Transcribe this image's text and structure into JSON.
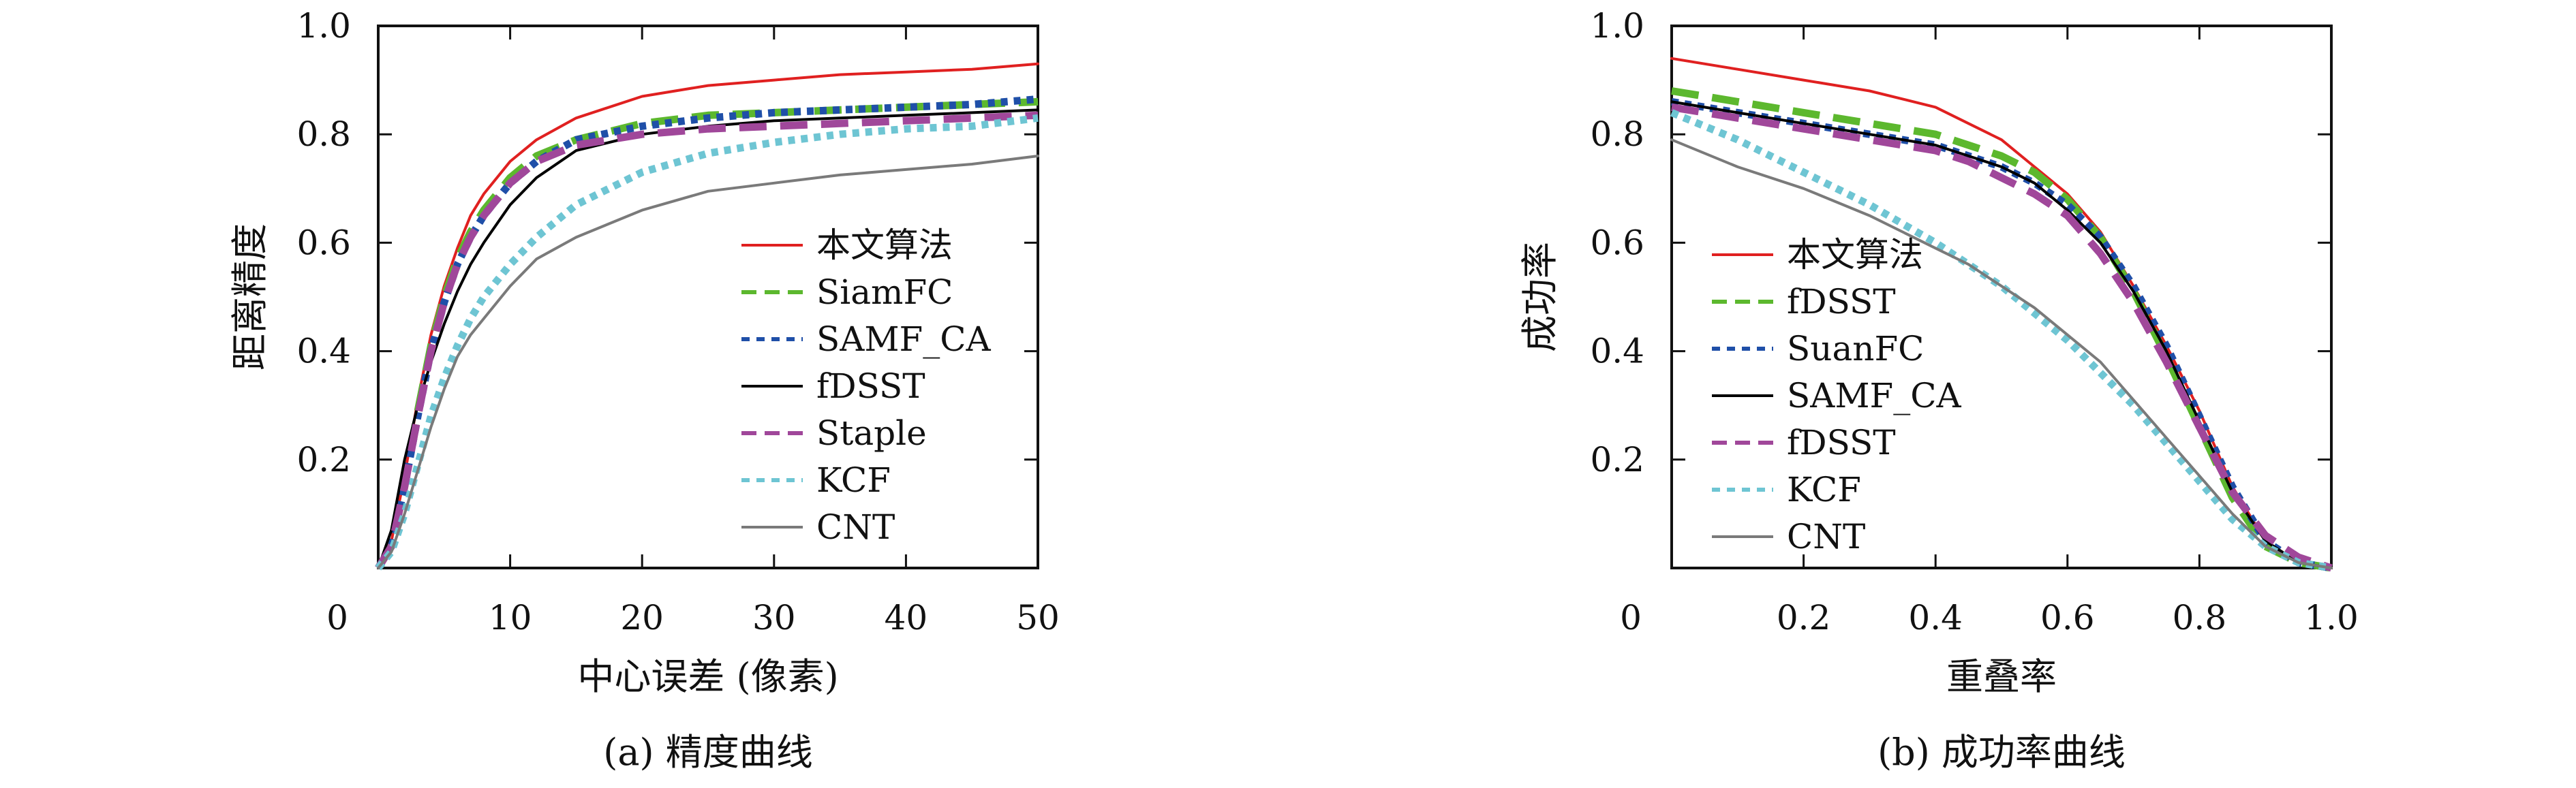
{
  "chart_data": [
    {
      "type": "line",
      "caption": "(a) 精度曲线",
      "xlabel": "中心误差 (像素)",
      "ylabel": "距离精度",
      "xlim": [
        0,
        50
      ],
      "ylim": [
        0,
        1.0
      ],
      "x_ticks": [
        "0",
        "10",
        "20",
        "30",
        "40",
        "50"
      ],
      "y_ticks": [
        "0.2",
        "0.4",
        "0.6",
        "0.8",
        "1.0"
      ],
      "grid": false,
      "legend_position": "bottom-right",
      "series": [
        {
          "name": "本文算法",
          "color": "#e02020",
          "style": "solid",
          "x": [
            0,
            1,
            2,
            3,
            4,
            5,
            6,
            7,
            8,
            10,
            12,
            15,
            20,
            25,
            30,
            35,
            40,
            45,
            50
          ],
          "y": [
            0,
            0.05,
            0.17,
            0.31,
            0.43,
            0.52,
            0.59,
            0.65,
            0.69,
            0.75,
            0.79,
            0.83,
            0.87,
            0.89,
            0.9,
            0.91,
            0.915,
            0.92,
            0.93
          ]
        },
        {
          "name": "SiamFC",
          "color": "#5cb82e",
          "style": "dashed-thick",
          "x": [
            0,
            1,
            2,
            3,
            4,
            5,
            6,
            7,
            8,
            10,
            12,
            15,
            20,
            25,
            30,
            35,
            40,
            45,
            50
          ],
          "y": [
            0,
            0.04,
            0.15,
            0.29,
            0.41,
            0.5,
            0.57,
            0.62,
            0.66,
            0.72,
            0.76,
            0.79,
            0.82,
            0.835,
            0.84,
            0.845,
            0.85,
            0.855,
            0.86
          ]
        },
        {
          "name": "SAMF_CA",
          "color": "#1f4fa8",
          "style": "dotted-thick",
          "x": [
            0,
            1,
            2,
            3,
            4,
            5,
            6,
            7,
            8,
            10,
            12,
            15,
            20,
            25,
            30,
            35,
            40,
            45,
            50
          ],
          "y": [
            0,
            0.04,
            0.15,
            0.28,
            0.4,
            0.49,
            0.56,
            0.61,
            0.65,
            0.71,
            0.75,
            0.79,
            0.815,
            0.83,
            0.84,
            0.845,
            0.85,
            0.855,
            0.865
          ]
        },
        {
          "name": "fDSST",
          "color": "#000000",
          "style": "solid",
          "x": [
            0,
            1,
            2,
            3,
            4,
            5,
            6,
            7,
            8,
            10,
            12,
            15,
            20,
            25,
            30,
            35,
            40,
            45,
            50
          ],
          "y": [
            0,
            0.07,
            0.2,
            0.3,
            0.38,
            0.45,
            0.51,
            0.56,
            0.6,
            0.67,
            0.72,
            0.77,
            0.8,
            0.815,
            0.825,
            0.83,
            0.835,
            0.84,
            0.845
          ]
        },
        {
          "name": "Staple",
          "color": "#a0479a",
          "style": "dashed-thick",
          "x": [
            0,
            1,
            2,
            3,
            4,
            5,
            6,
            7,
            8,
            10,
            12,
            15,
            20,
            25,
            30,
            35,
            40,
            45,
            50
          ],
          "y": [
            0,
            0.04,
            0.15,
            0.28,
            0.4,
            0.49,
            0.56,
            0.61,
            0.65,
            0.71,
            0.75,
            0.78,
            0.8,
            0.81,
            0.815,
            0.82,
            0.825,
            0.83,
            0.835
          ]
        },
        {
          "name": "KCF",
          "color": "#6ec5d3",
          "style": "dotted-thick",
          "x": [
            0,
            1,
            2,
            3,
            4,
            5,
            6,
            7,
            8,
            10,
            12,
            15,
            20,
            25,
            30,
            35,
            40,
            45,
            50
          ],
          "y": [
            0,
            0.03,
            0.1,
            0.19,
            0.28,
            0.35,
            0.41,
            0.46,
            0.5,
            0.56,
            0.61,
            0.67,
            0.73,
            0.765,
            0.785,
            0.8,
            0.81,
            0.815,
            0.83
          ]
        },
        {
          "name": "CNT",
          "color": "#7a7a7a",
          "style": "solid",
          "x": [
            0,
            1,
            2,
            3,
            4,
            5,
            6,
            7,
            8,
            10,
            12,
            15,
            20,
            25,
            30,
            35,
            40,
            45,
            50
          ],
          "y": [
            0,
            0.03,
            0.1,
            0.18,
            0.26,
            0.33,
            0.39,
            0.43,
            0.46,
            0.52,
            0.57,
            0.61,
            0.66,
            0.695,
            0.71,
            0.725,
            0.735,
            0.745,
            0.76
          ]
        }
      ]
    },
    {
      "type": "line",
      "caption": "(b) 成功率曲线",
      "xlabel": "重叠率",
      "ylabel": "成功率",
      "xlim": [
        0,
        1.0
      ],
      "ylim": [
        0,
        1.0
      ],
      "x_ticks": [
        "0",
        "0.2",
        "0.4",
        "0.6",
        "0.8",
        "1.0"
      ],
      "y_ticks": [
        "0.2",
        "0.4",
        "0.6",
        "0.8",
        "1.0"
      ],
      "grid": false,
      "legend_position": "middle-left",
      "series": [
        {
          "name": "本文算法",
          "color": "#e02020",
          "style": "solid",
          "x": [
            0,
            0.1,
            0.2,
            0.3,
            0.4,
            0.45,
            0.5,
            0.55,
            0.6,
            0.65,
            0.7,
            0.75,
            0.8,
            0.85,
            0.9,
            0.95,
            1.0
          ],
          "y": [
            0.94,
            0.92,
            0.9,
            0.88,
            0.85,
            0.82,
            0.79,
            0.74,
            0.69,
            0.62,
            0.52,
            0.41,
            0.29,
            0.15,
            0.05,
            0.01,
            0
          ]
        },
        {
          "name": "fDSST",
          "color": "#5cb82e",
          "style": "dashed-thick",
          "x": [
            0,
            0.1,
            0.2,
            0.3,
            0.4,
            0.45,
            0.5,
            0.55,
            0.6,
            0.65,
            0.7,
            0.75,
            0.8,
            0.85,
            0.9,
            0.95,
            1.0
          ],
          "y": [
            0.88,
            0.86,
            0.84,
            0.82,
            0.8,
            0.78,
            0.76,
            0.73,
            0.68,
            0.61,
            0.51,
            0.39,
            0.26,
            0.13,
            0.04,
            0.01,
            0
          ]
        },
        {
          "name": "SuanFC",
          "color": "#1f4fa8",
          "style": "dotted-thick",
          "x": [
            0,
            0.1,
            0.2,
            0.3,
            0.4,
            0.45,
            0.5,
            0.55,
            0.6,
            0.65,
            0.7,
            0.75,
            0.8,
            0.85,
            0.9,
            0.95,
            1.0
          ],
          "y": [
            0.86,
            0.84,
            0.82,
            0.8,
            0.78,
            0.76,
            0.74,
            0.71,
            0.67,
            0.61,
            0.52,
            0.41,
            0.28,
            0.15,
            0.05,
            0.01,
            0
          ]
        },
        {
          "name": "SAMF_CA",
          "color": "#000000",
          "style": "solid",
          "x": [
            0,
            0.1,
            0.2,
            0.3,
            0.4,
            0.45,
            0.5,
            0.55,
            0.6,
            0.65,
            0.7,
            0.75,
            0.8,
            0.85,
            0.9,
            0.95,
            1.0
          ],
          "y": [
            0.86,
            0.84,
            0.82,
            0.8,
            0.78,
            0.76,
            0.74,
            0.71,
            0.66,
            0.6,
            0.51,
            0.4,
            0.27,
            0.14,
            0.05,
            0.01,
            0
          ]
        },
        {
          "name": "fDSST",
          "color": "#a0479a",
          "style": "dashed-thick",
          "x": [
            0,
            0.1,
            0.2,
            0.3,
            0.4,
            0.45,
            0.5,
            0.55,
            0.6,
            0.65,
            0.7,
            0.75,
            0.8,
            0.85,
            0.9,
            0.95,
            1.0
          ],
          "y": [
            0.85,
            0.83,
            0.81,
            0.79,
            0.77,
            0.75,
            0.72,
            0.69,
            0.65,
            0.58,
            0.49,
            0.38,
            0.26,
            0.14,
            0.06,
            0.02,
            0
          ]
        },
        {
          "name": "KCF",
          "color": "#6ec5d3",
          "style": "dotted-thick",
          "x": [
            0,
            0.1,
            0.2,
            0.3,
            0.4,
            0.45,
            0.5,
            0.55,
            0.6,
            0.65,
            0.7,
            0.75,
            0.8,
            0.85,
            0.9,
            0.95,
            1.0
          ],
          "y": [
            0.84,
            0.79,
            0.73,
            0.67,
            0.6,
            0.56,
            0.52,
            0.47,
            0.42,
            0.36,
            0.3,
            0.23,
            0.16,
            0.09,
            0.04,
            0.01,
            0
          ]
        },
        {
          "name": "CNT",
          "color": "#7a7a7a",
          "style": "solid",
          "x": [
            0,
            0.1,
            0.2,
            0.3,
            0.4,
            0.45,
            0.5,
            0.55,
            0.6,
            0.65,
            0.7,
            0.75,
            0.8,
            0.85,
            0.9,
            0.95,
            1.0
          ],
          "y": [
            0.79,
            0.74,
            0.7,
            0.65,
            0.59,
            0.56,
            0.52,
            0.48,
            0.43,
            0.38,
            0.31,
            0.24,
            0.17,
            0.1,
            0.04,
            0.01,
            0
          ]
        }
      ]
    }
  ]
}
